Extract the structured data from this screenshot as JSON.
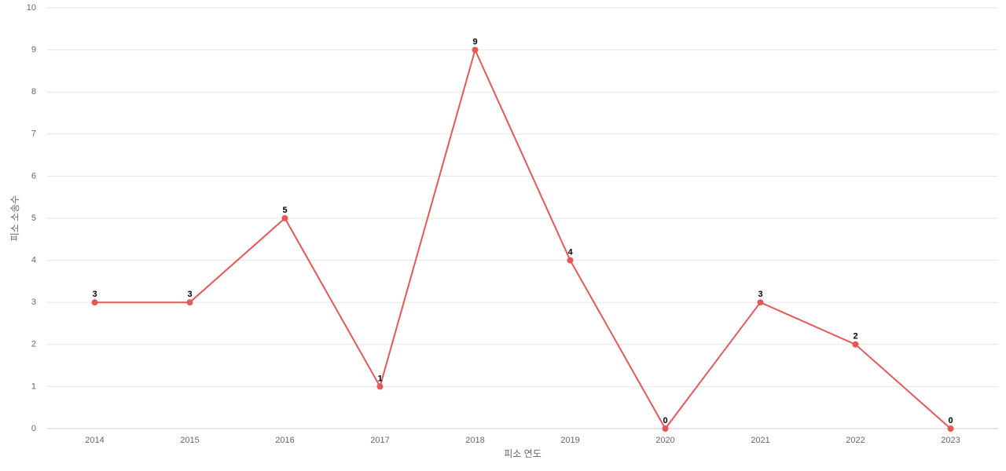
{
  "chart_data": {
    "type": "line",
    "x_label": "피소 연도",
    "y_label": "피소 소송수",
    "categories": [
      "2014",
      "2015",
      "2016",
      "2017",
      "2018",
      "2019",
      "2020",
      "2021",
      "2022",
      "2023"
    ],
    "values": [
      3,
      3,
      5,
      1,
      9,
      4,
      0,
      3,
      2,
      0
    ],
    "color": "#e85757",
    "ylim": [
      0,
      10
    ],
    "yticks": [
      0,
      1,
      2,
      3,
      4,
      5,
      6,
      7,
      8,
      9,
      10
    ],
    "grid": true
  }
}
